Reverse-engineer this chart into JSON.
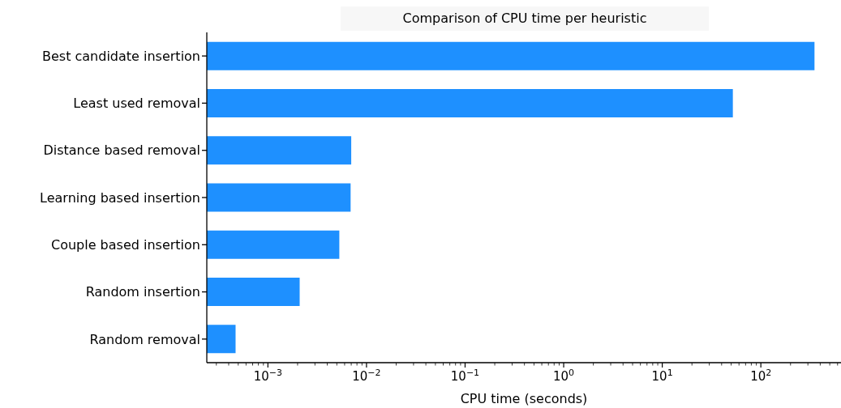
{
  "chart_data": {
    "type": "bar",
    "orientation": "horizontal",
    "title": "Comparison of CPU time per heuristic",
    "xlabel": "CPU time (seconds)",
    "categories": [
      "Best candidate insertion",
      "Least used removal",
      "Distance based removal",
      "Learning based insertion",
      "Couple based insertion",
      "Random insertion",
      "Random removal"
    ],
    "values": [
      350,
      52,
      0.007,
      0.0069,
      0.0053,
      0.0021,
      0.00047
    ],
    "color": "#1e90ff",
    "log": "x",
    "xlim": [
      0.00024,
      650
    ],
    "xticks": [
      {
        "value": 0.0003,
        "label": null
      },
      {
        "value": 0.0004,
        "label": null
      },
      {
        "value": 0.0005,
        "label": null
      },
      {
        "value": 0.0006,
        "label": null
      },
      {
        "value": 0.0007,
        "label": null
      },
      {
        "value": 0.0008,
        "label": null
      },
      {
        "value": 0.0009,
        "label": null
      },
      {
        "value": 0.001,
        "label": "10$^{−3}$"
      },
      {
        "value": 0.002,
        "label": null
      },
      {
        "value": 0.003,
        "label": null
      },
      {
        "value": 0.004,
        "label": null
      },
      {
        "value": 0.005,
        "label": null
      },
      {
        "value": 0.006,
        "label": null
      },
      {
        "value": 0.007,
        "label": null
      },
      {
        "value": 0.008,
        "label": null
      },
      {
        "value": 0.009,
        "label": null
      },
      {
        "value": 0.01,
        "label": "10$^{−2}$"
      },
      {
        "value": 0.02,
        "label": null
      },
      {
        "value": 0.03,
        "label": null
      },
      {
        "value": 0.04,
        "label": null
      },
      {
        "value": 0.05,
        "label": null
      },
      {
        "value": 0.06,
        "label": null
      },
      {
        "value": 0.07,
        "label": null
      },
      {
        "value": 0.08,
        "label": null
      },
      {
        "value": 0.09,
        "label": null
      },
      {
        "value": 0.1,
        "label": "10$^{−1}$"
      },
      {
        "value": 0.2,
        "label": null
      },
      {
        "value": 0.3,
        "label": null
      },
      {
        "value": 0.4,
        "label": null
      },
      {
        "value": 0.5,
        "label": null
      },
      {
        "value": 0.6,
        "label": null
      },
      {
        "value": 0.7,
        "label": null
      },
      {
        "value": 0.8,
        "label": null
      },
      {
        "value": 0.9,
        "label": null
      },
      {
        "value": 1,
        "label": "10$^{0}$"
      },
      {
        "value": 2,
        "label": null
      },
      {
        "value": 3,
        "label": null
      },
      {
        "value": 4,
        "label": null
      },
      {
        "value": 5,
        "label": null
      },
      {
        "value": 6,
        "label": null
      },
      {
        "value": 7,
        "label": null
      },
      {
        "value": 8,
        "label": null
      },
      {
        "value": 9,
        "label": null
      },
      {
        "value": 10,
        "label": "10$^{1}$"
      },
      {
        "value": 20,
        "label": null
      },
      {
        "value": 30,
        "label": null
      },
      {
        "value": 40,
        "label": null
      },
      {
        "value": 50,
        "label": null
      },
      {
        "value": 60,
        "label": null
      },
      {
        "value": 70,
        "label": null
      },
      {
        "value": 80,
        "label": null
      },
      {
        "value": 90,
        "label": null
      },
      {
        "value": 100,
        "label": "10$^{2}$"
      },
      {
        "value": 200,
        "label": null
      },
      {
        "value": 300,
        "label": null
      },
      {
        "value": 400,
        "label": null
      },
      {
        "value": 500,
        "label": null
      },
      {
        "value": 600,
        "label": null
      }
    ],
    "grid": false,
    "legend": false
  }
}
